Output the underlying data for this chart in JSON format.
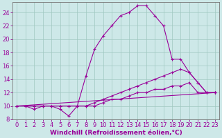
{
  "background_color": "#cde8e8",
  "grid_color": "#a0c8c0",
  "line_color": "#990099",
  "xlim": [
    -0.5,
    23.5
  ],
  "ylim": [
    8,
    25.5
  ],
  "xlabel": "Windchill (Refroidissement éolien,°C)",
  "yticks": [
    8,
    10,
    12,
    14,
    16,
    18,
    20,
    22,
    24
  ],
  "xticks": [
    0,
    1,
    2,
    3,
    4,
    5,
    6,
    7,
    8,
    9,
    10,
    11,
    12,
    13,
    14,
    15,
    16,
    17,
    18,
    19,
    20,
    21,
    22,
    23
  ],
  "lines": [
    {
      "comment": "Main curve - rises high peaks at 14-15 then drops",
      "x": [
        0,
        1,
        2,
        3,
        4,
        5,
        6,
        7,
        8,
        9,
        10,
        11,
        12,
        13,
        14,
        15,
        16,
        17,
        18,
        19,
        20,
        21,
        22,
        23
      ],
      "y": [
        10,
        10,
        9.5,
        10,
        10,
        9.5,
        8.5,
        10,
        14.5,
        18.5,
        20.5,
        22,
        23.5,
        24,
        25,
        25,
        23.5,
        22,
        17,
        17,
        15,
        13.5,
        12,
        12
      ]
    },
    {
      "comment": "Second curve - slow rise peaks at 20 then drops",
      "x": [
        0,
        1,
        2,
        3,
        4,
        5,
        6,
        7,
        8,
        9,
        10,
        11,
        12,
        13,
        14,
        15,
        16,
        17,
        18,
        19,
        20,
        21,
        22,
        23
      ],
      "y": [
        10,
        10,
        10,
        10,
        10,
        10,
        10,
        10,
        10,
        10.5,
        11,
        11.5,
        12,
        12.5,
        13,
        13.5,
        14,
        14.5,
        15,
        15.5,
        15,
        13.5,
        12,
        12
      ]
    },
    {
      "comment": "Third curve - very gradual rise, nearly straight",
      "x": [
        0,
        1,
        2,
        3,
        4,
        5,
        6,
        7,
        8,
        9,
        10,
        11,
        12,
        13,
        14,
        15,
        16,
        17,
        18,
        19,
        20,
        21,
        22,
        23
      ],
      "y": [
        10,
        10,
        10,
        10,
        10,
        10,
        10,
        10,
        10,
        10,
        10.5,
        11,
        11,
        11.5,
        12,
        12,
        12.5,
        12.5,
        13,
        13,
        13.5,
        12,
        12,
        12
      ]
    },
    {
      "comment": "Bottom nearly straight line from 10 to 12",
      "x": [
        0,
        23
      ],
      "y": [
        10,
        12
      ]
    }
  ],
  "xlabel_fontsize": 6.5,
  "tick_fontsize": 6
}
